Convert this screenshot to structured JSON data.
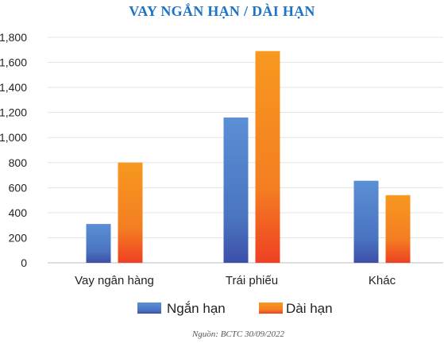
{
  "chart_data": {
    "type": "bar",
    "title": "VAY NGẮN HẠN / DÀI HẠN",
    "xlabel": "",
    "ylabel": "",
    "categories": [
      "Vay ngân hàng",
      "Trái phiếu",
      "Khác"
    ],
    "series": [
      {
        "name": "Ngắn hạn",
        "values": [
          310,
          1160,
          655
        ],
        "color": "#4f80c9"
      },
      {
        "name": "Dài hạn",
        "values": [
          800,
          1690,
          540
        ],
        "color": "#f58e22"
      }
    ],
    "ylim": [
      0,
      1800
    ],
    "yticks": [
      0,
      200,
      400,
      600,
      800,
      1000,
      1200,
      1400,
      1600,
      1800
    ],
    "ytick_labels": [
      "0",
      "200",
      "400",
      "600",
      "800",
      "1,000",
      "1,200",
      "1,400",
      "1,600",
      "1,800"
    ],
    "grid": true,
    "legend_position": "bottom",
    "source": "Nguồn: BCTC 30/09/2022"
  }
}
